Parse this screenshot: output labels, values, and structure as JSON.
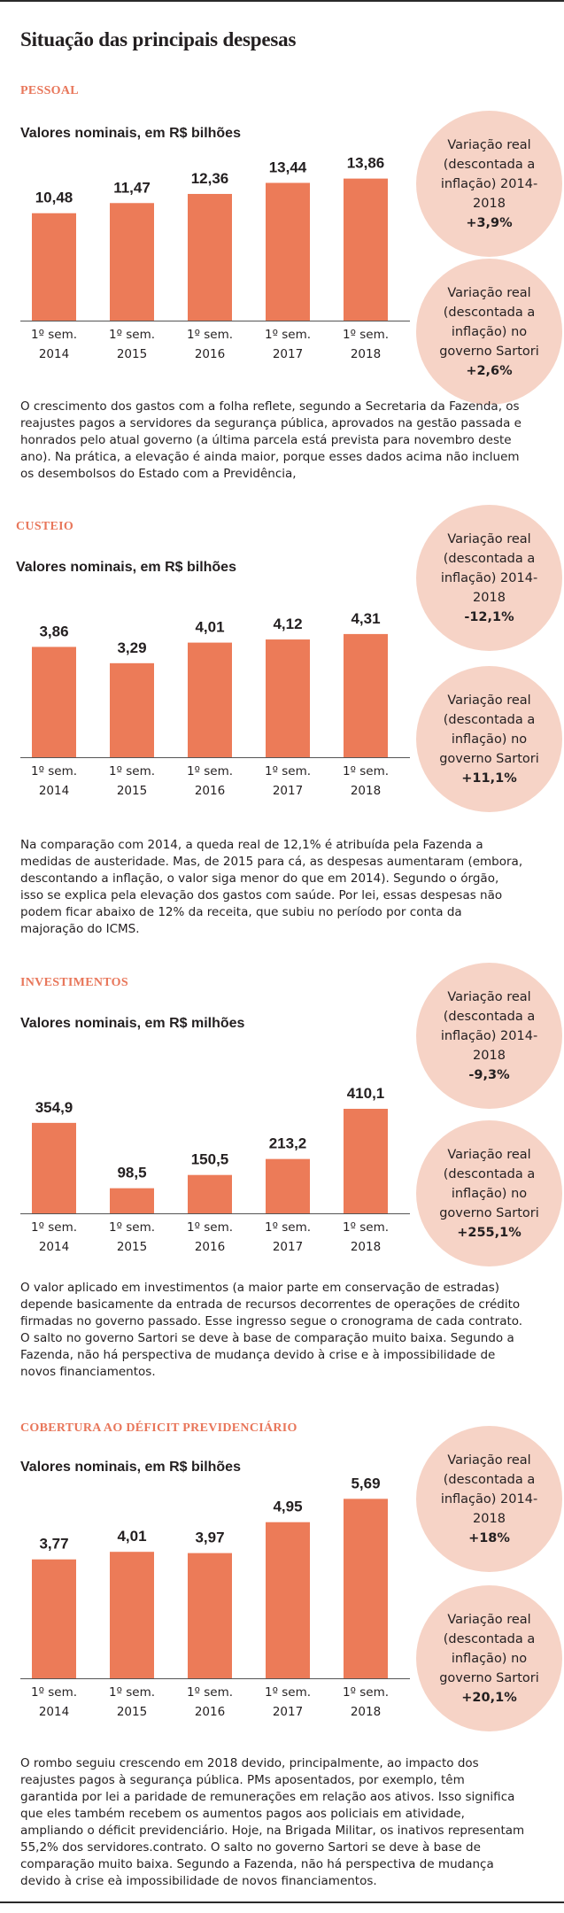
{
  "title": "Situação das principais despesas",
  "sections": [
    {
      "name": "PESSOAL",
      "subtitle": "Valores nominais, em R$ bilhões",
      "circle1": {
        "label": "Variação real (descontada a inflação) 2014-2018",
        "value": "+3,9%"
      },
      "circle2": {
        "label": "Variação real (descontada a inflação) no governo Sartori",
        "value": "+2,6%"
      },
      "paragraph": "O crescimento dos gastos com a folha reflete, segundo a Secretaria da Fazenda, os reajustes pagos a servidores da segurança pública, aprovados na gestão passada e honrados pelo atual governo (a última parcela está prevista para novembro deste ano). Na prática, a elevação é ainda maior, porque esses dados acima não incluem os desembolsos do Estado com a Previdência,"
    },
    {
      "name": "CUSTEIO",
      "subtitle": "Valores nominais, em R$ bilhões",
      "circle1": {
        "label": "Variação real (descontada a inflação) 2014-2018",
        "value": "-12,1%"
      },
      "circle2": {
        "label": "Variação real (descontada a inflação) no governo Sartori",
        "value": "+11,1%"
      },
      "paragraph": "Na comparação com 2014, a queda real de 12,1% é atribuída pela Fazenda a medidas de austeridade. Mas, de 2015 para cá, as despesas aumentaram (embora, descontando a inflação, o valor siga menor do que em 2014). Segundo o órgão, isso se explica pela elevação dos gastos com saúde. Por lei, essas despesas não podem ficar abaixo de 12% da receita, que subiu no período por conta da majoração do ICMS."
    },
    {
      "name": "INVESTIMENTOS",
      "subtitle": "Valores nominais, em R$ milhões",
      "circle1": {
        "label": "Variação real (descontada a inflação) 2014-2018",
        "value": "-9,3%"
      },
      "circle2": {
        "label": "Variação real (descontada a inflação) no governo Sartori",
        "value": "+255,1%"
      },
      "paragraph": "O valor aplicado em investimentos (a maior parte em conservação de estradas) depende basicamente da entrada de recursos decorrentes de operações de crédito firmadas no governo passado. Esse ingresso segue o cronograma de cada contrato. O salto no governo Sartori se deve à base de comparação muito baixa. Segundo a Fazenda, não há perspectiva de mudança devido à crise e à impossibilidade de novos financiamentos."
    },
    {
      "name": "COBERTURA AO DÉFICIT PREVIDENCIÁRIO",
      "subtitle": "Valores nominais, em R$ bilhões",
      "circle1": {
        "label": "Variação real (descontada a inflação) 2014-2018",
        "value": "+18%"
      },
      "circle2": {
        "label": "Variação real (descontada a inflação) no governo Sartori",
        "value": "+20,1%"
      },
      "paragraph": "O rombo seguiu crescendo em 2018 devido, principalmente, ao impacto dos reajustes pagos à segurança pública. PMs aposentados, por exemplo, têm garantida por lei a paridade de remunerações em relação aos ativos. Isso significa que eles também recebem os aumentos pagos aos policiais em atividade, ampliando o déficit previdenciário. Hoje, na Brigada Militar, os inativos representam 55,2% dos servidores.contrato. O salto no governo Sartori se deve à base de comparação muito baixa. Segundo a Fazenda, não há perspectiva de mudança devido à crise eà impossibilidade de novos financiamentos."
    }
  ],
  "chart_data": [
    {
      "type": "bar",
      "title": "PESSOAL",
      "ylabel": "Valores nominais, em R$ bilhões",
      "categories": [
        "1º sem. 2014",
        "1º sem. 2015",
        "1º sem. 2016",
        "1º sem. 2017",
        "1º sem. 2018"
      ],
      "values": [
        10.48,
        11.47,
        12.36,
        13.44,
        13.86
      ],
      "labels": [
        "10,48",
        "11,47",
        "12,36",
        "13,44",
        "13,86"
      ],
      "color": "#ec7b58",
      "ylim": [
        0,
        14
      ]
    },
    {
      "type": "bar",
      "title": "CUSTEIO",
      "ylabel": "Valores nominais, em R$ bilhões",
      "categories": [
        "1º sem. 2014",
        "1º sem. 2015",
        "1º sem. 2016",
        "1º sem. 2017",
        "1º sem. 2018"
      ],
      "values": [
        3.86,
        3.29,
        4.01,
        4.12,
        4.31
      ],
      "labels": [
        "3,86",
        "3,29",
        "4,01",
        "4,12",
        "4,31"
      ],
      "color": "#ec7b58",
      "ylim": [
        0,
        4.4
      ]
    },
    {
      "type": "bar",
      "title": "INVESTIMENTOS",
      "ylabel": "Valores nominais, em R$ milhões",
      "categories": [
        "1º sem. 2014",
        "1º sem. 2015",
        "1º sem. 2016",
        "1º sem. 2017",
        "1º sem. 2018"
      ],
      "values": [
        354.9,
        98.5,
        150.5,
        213.2,
        410.1
      ],
      "labels": [
        "354,9",
        "98,5",
        "150,5",
        "213,2",
        "410,1"
      ],
      "color": "#ec7b58",
      "ylim": [
        0,
        410
      ]
    },
    {
      "type": "bar",
      "title": "COBERTURA AO DÉFICIT PREVIDENCIÁRIO",
      "ylabel": "Valores nominais, em R$ bilhões",
      "categories": [
        "1º sem. 2014",
        "1º sem. 2015",
        "1º sem. 2016",
        "1º sem. 2017",
        "1º sem. 2018"
      ],
      "values": [
        3.77,
        4.01,
        3.97,
        4.95,
        5.69
      ],
      "labels": [
        "3,77",
        "4,01",
        "3,97",
        "4,95",
        "5,69"
      ],
      "color": "#ec7b58",
      "ylim": [
        0,
        5.7
      ]
    }
  ]
}
